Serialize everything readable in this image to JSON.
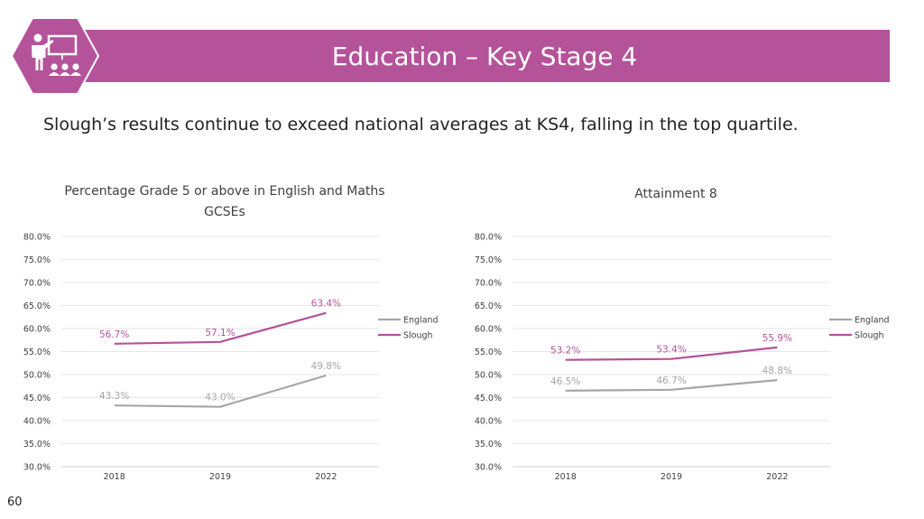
{
  "page": {
    "title": "Education – Key Stage 4",
    "subtitle": "Slough’s results continue to exceed national averages at KS4, falling in the top quartile.",
    "page_number": "60",
    "icon": "teacher-presentation-icon",
    "colors": {
      "banner": "#b5539a",
      "england": "#a6a6a6",
      "slough": "#b5539a"
    }
  },
  "chart_data": [
    {
      "type": "line",
      "title": "Percentage Grade 5 or above in English and Maths GCSEs",
      "categories": [
        "2018",
        "2019",
        "2022"
      ],
      "series": [
        {
          "name": "England",
          "values": [
            43.3,
            43.0,
            49.8
          ],
          "labels": [
            "43.3%",
            "43.0%",
            "49.8%"
          ]
        },
        {
          "name": "Slough",
          "values": [
            56.7,
            57.1,
            63.4
          ],
          "labels": [
            "56.7%",
            "57.1%",
            "63.4%"
          ]
        }
      ],
      "ylim": [
        30,
        80
      ],
      "yticks": [
        "30.0%",
        "35.0%",
        "40.0%",
        "45.0%",
        "50.0%",
        "55.0%",
        "60.0%",
        "65.0%",
        "70.0%",
        "75.0%",
        "80.0%"
      ],
      "grid": true,
      "legend": "right"
    },
    {
      "type": "line",
      "title": "Attainment 8",
      "categories": [
        "2018",
        "2019",
        "2022"
      ],
      "series": [
        {
          "name": "England",
          "values": [
            46.5,
            46.7,
            48.8
          ],
          "labels": [
            "46.5%",
            "46.7%",
            "48.8%"
          ]
        },
        {
          "name": "Slough",
          "values": [
            53.2,
            53.4,
            55.9
          ],
          "labels": [
            "53.2%",
            "53.4%",
            "55.9%"
          ]
        }
      ],
      "ylim": [
        30,
        80
      ],
      "yticks": [
        "30.0%",
        "35.0%",
        "40.0%",
        "45.0%",
        "50.0%",
        "55.0%",
        "60.0%",
        "65.0%",
        "70.0%",
        "75.0%",
        "80.0%"
      ],
      "grid": true,
      "legend": "right"
    }
  ]
}
